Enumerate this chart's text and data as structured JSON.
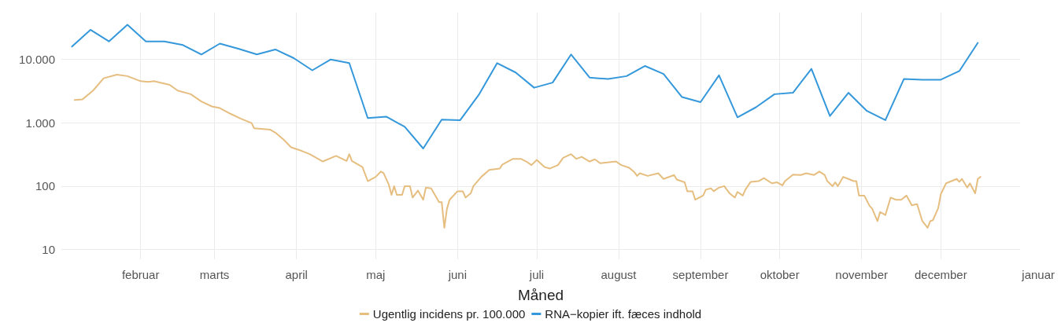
{
  "chart_data": {
    "type": "line",
    "xlabel": "Måned",
    "log": "y",
    "grid": true,
    "legend": "bottom",
    "marker": "none",
    "line_style": "solid",
    "annotations": [
      "januar"
    ],
    "xlim": [
      "--01-02",
      "--12-31"
    ],
    "xticks": [
      {
        "value": "--02-01",
        "label": "februar"
      },
      {
        "value": "--03-01",
        "label": "marts"
      },
      {
        "value": "--04-01",
        "label": "april"
      },
      {
        "value": "--05-01",
        "label": "maj"
      },
      {
        "value": "--06-01",
        "label": "juni"
      },
      {
        "value": "--07-01",
        "label": "juli"
      },
      {
        "value": "--08-01",
        "label": "august"
      },
      {
        "value": "--09-01",
        "label": "september"
      },
      {
        "value": "--10-01",
        "label": "oktober"
      },
      {
        "value": "--11-01",
        "label": "november"
      },
      {
        "value": "--12-01",
        "label": "december"
      }
    ],
    "ylim": [
      7,
      55000
    ],
    "yticks": [
      10,
      100,
      {
        "value": 1000,
        "label": "1.000"
      },
      {
        "value": 10000,
        "label": "10.000"
      }
    ],
    "series": [
      {
        "name": "Ugentlig incidens pr. 100.000",
        "color": "#e5be80",
        "x": [
          "--01-07",
          "--01-10",
          "--01-14",
          "--01-18",
          "--01-23",
          "--01-27",
          "--02-01",
          "--02-04",
          "--02-06",
          "--02-12",
          "--02-15",
          "--02-20",
          "--02-24",
          "--02-28",
          "--03-03",
          "--03-07",
          "--03-11",
          "--03-15",
          "--03-16",
          "--03-22",
          "--03-24",
          "--03-27",
          "--03-30",
          "--04-03",
          "--04-06",
          "--04-11",
          "--04-16",
          "--04-20",
          "--04-21",
          "--04-22",
          "--04-26",
          "--04-28",
          "--05-01",
          "--05-03",
          "--05-04",
          "--05-06",
          "--05-07",
          "--05-08",
          "--05-09",
          "--05-11",
          "--05-12",
          "--05-14",
          "--05-15",
          "--05-17",
          "--05-19",
          "--05-20",
          "--05-22",
          "--05-25",
          "--05-26",
          "--05-27",
          "--05-28",
          "--05-29",
          "--06-01",
          "--06-03",
          "--06-04",
          "--06-06",
          "--06-07",
          "--06-10",
          "--06-13",
          "--06-17",
          "--06-18",
          "--06-22",
          "--06-25",
          "--06-27",
          "--06-29",
          "--07-01",
          "--07-04",
          "--07-06",
          "--07-09",
          "--07-11",
          "--07-14",
          "--07-16",
          "--07-18",
          "--07-21",
          "--07-23",
          "--07-25",
          "--07-31",
          "--08-02",
          "--08-05",
          "--08-07",
          "--08-08",
          "--08-09",
          "--08-12",
          "--08-16",
          "--08-18",
          "--08-22",
          "--08-23",
          "--08-26",
          "--08-27",
          "--08-29",
          "--08-30",
          "--09-02",
          "--09-03",
          "--09-05",
          "--09-06",
          "--09-08",
          "--09-10",
          "--09-12",
          "--09-14",
          "--09-15",
          "--09-17",
          "--09-18",
          "--09-20",
          "--09-23",
          "--09-25",
          "--09-28",
          "--09-30",
          "--10-02",
          "--10-03",
          "--10-06",
          "--10-09",
          "--10-11",
          "--10-14",
          "--10-16",
          "--10-18",
          "--10-19",
          "--10-21",
          "--10-22",
          "--10-23",
          "--10-25",
          "--10-27",
          "--10-29",
          "--10-30",
          "--10-31",
          "--11-02",
          "--11-04",
          "--11-05",
          "--11-07",
          "--11-08",
          "--11-10",
          "--11-12",
          "--11-14",
          "--11-16",
          "--11-18",
          "--11-20",
          "--11-22",
          "--11-24",
          "--11-26",
          "--11-27",
          "--11-28",
          "--11-30",
          "--12-01",
          "--12-03",
          "--12-05",
          "--12-07",
          "--12-08",
          "--12-09",
          "--12-11",
          "--12-12",
          "--12-14",
          "--12-15",
          "--12-16"
        ],
        "values": [
          2290,
          2350,
          3230,
          5050,
          5750,
          5460,
          4540,
          4430,
          4540,
          3980,
          3230,
          2830,
          2170,
          1810,
          1710,
          1390,
          1160,
          990,
          820,
          780,
          700,
          550,
          410,
          360,
          320,
          245,
          300,
          250,
          320,
          250,
          200,
          120,
          140,
          170,
          160,
          105,
          73,
          100,
          73,
          73,
          100,
          100,
          66,
          85,
          61,
          95,
          92,
          56,
          56,
          22,
          44,
          61,
          83,
          83,
          66,
          77,
          100,
          140,
          180,
          190,
          220,
          270,
          270,
          245,
          215,
          260,
          200,
          190,
          215,
          280,
          320,
          270,
          290,
          245,
          265,
          230,
          245,
          215,
          195,
          165,
          145,
          160,
          145,
          160,
          130,
          150,
          127,
          115,
          83,
          83,
          61,
          71,
          88,
          92,
          83,
          95,
          100,
          77,
          66,
          81,
          71,
          88,
          117,
          120,
          134,
          111,
          115,
          103,
          120,
          152,
          150,
          160,
          150,
          170,
          150,
          120,
          100,
          115,
          100,
          140,
          130,
          120,
          120,
          71,
          71,
          49,
          44,
          28,
          39,
          35,
          66,
          61,
          61,
          71,
          50,
          52,
          28,
          22,
          28,
          29,
          45,
          75,
          111,
          120,
          130,
          117,
          130,
          95,
          111,
          77,
          130,
          140
        ]
      },
      {
        "name": "RNA−kopier ift. fæces indhold",
        "color": "#3498db",
        "x": [
          "--01-06",
          "--01-13",
          "--01-20",
          "--01-27",
          "--02-03",
          "--02-10",
          "--02-17",
          "--02-24",
          "--03-03",
          "--03-10",
          "--03-17",
          "--03-24",
          "--03-31",
          "--04-07",
          "--04-14",
          "--04-21",
          "--04-28",
          "--05-05",
          "--05-12",
          "--05-19",
          "--05-26",
          "--06-02",
          "--06-09",
          "--06-16",
          "--06-23",
          "--06-30",
          "--07-07",
          "--07-14",
          "--07-21",
          "--07-28",
          "--08-04",
          "--08-11",
          "--08-18",
          "--08-25",
          "--09-01",
          "--09-08",
          "--09-15",
          "--09-22",
          "--09-29",
          "--10-06",
          "--10-13",
          "--10-20",
          "--10-27",
          "--11-03",
          "--11-10",
          "--11-17",
          "--11-24",
          "--12-01",
          "--12-08",
          "--12-15"
        ],
        "values": [
          16000,
          29400,
          19300,
          35400,
          19300,
          19300,
          16900,
          12000,
          17800,
          14800,
          12000,
          14400,
          10500,
          6740,
          10000,
          8770,
          1190,
          1250,
          865,
          393,
          1120,
          1100,
          2750,
          8770,
          6230,
          3580,
          4310,
          12000,
          5180,
          4910,
          5460,
          7890,
          5900,
          2550,
          2120,
          5610,
          1220,
          1760,
          2830,
          2980,
          7100,
          1280,
          2980,
          1540,
          1100,
          4910,
          4790,
          4790,
          6560,
          18300
        ]
      }
    ]
  }
}
